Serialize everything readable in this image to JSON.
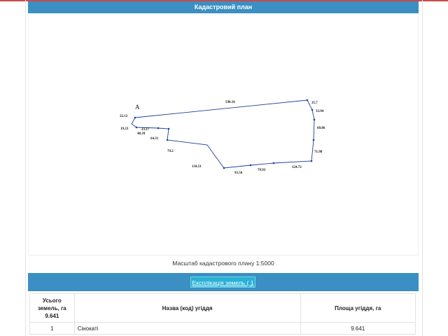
{
  "plan": {
    "title": "Кадастровий план",
    "point_label": "A",
    "segments": [
      {
        "label": "590.16"
      },
      {
        "label": "35.7"
      },
      {
        "label": "33.94"
      },
      {
        "label": "68.86"
      },
      {
        "label": "71.98"
      },
      {
        "label": "124.72"
      },
      {
        "label": "79.93"
      },
      {
        "label": "93.56"
      },
      {
        "label": "134.51"
      },
      {
        "label": "79.2"
      },
      {
        "label": "64.31"
      },
      {
        "label": "23.17"
      },
      {
        "label": "48.39"
      },
      {
        "label": "19.23"
      },
      {
        "label": "22.12"
      }
    ],
    "line_color": "#1c3f9a",
    "scale": "Масштаб кадастрового плану 1:5000"
  },
  "explication": {
    "button_label": "Експлікація земель ( 1 )",
    "bar_color": "#3b8fc2"
  },
  "table": {
    "header": {
      "total_line1": "Усього",
      "total_line2": "земель, га",
      "total_value": "9.641",
      "name": "Назва (код) угіддя",
      "area": "Площа угіддя, га"
    },
    "rows": [
      {
        "num": "1",
        "name": "Сінокаті",
        "area": "9.641"
      }
    ]
  }
}
